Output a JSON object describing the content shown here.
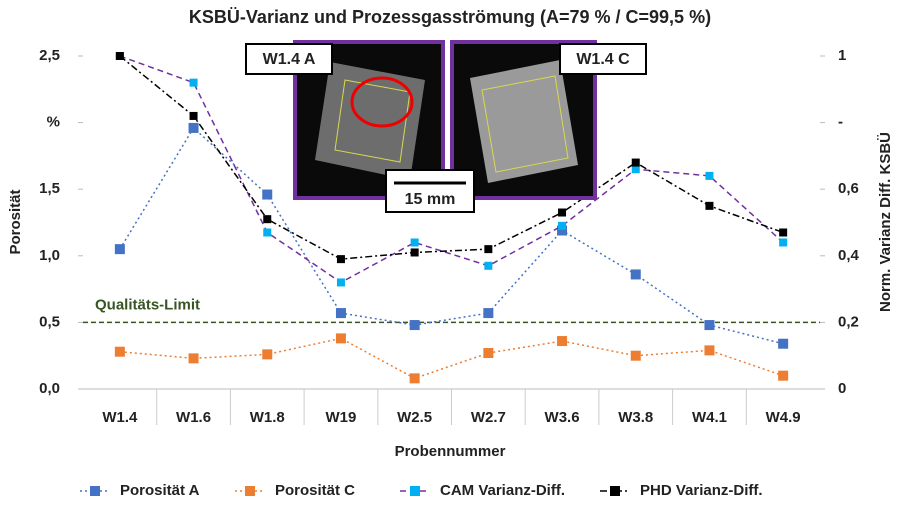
{
  "chart_data": {
    "type": "line",
    "title": "KSBÜ-Varianz und Prozessgasströmung (A=79 % / C=99,5 %)",
    "x_label": "Probennummer",
    "y_label": "Porosität",
    "y2_label": "Norm. Varianz Diff. KSBÜ",
    "categories": [
      "W1.4",
      "W1.6",
      "W1.8",
      "W19",
      "W2.5",
      "W2.7",
      "W3.6",
      "W3.8",
      "W4.1",
      "W4.9"
    ],
    "series": [
      {
        "name": "Porosität A",
        "color": "#4472c4",
        "line_color": "#4472c4",
        "dash": "dotted",
        "axis": "y",
        "values": [
          1.05,
          1.96,
          1.46,
          0.57,
          0.48,
          0.57,
          1.19,
          0.86,
          0.48,
          0.34
        ]
      },
      {
        "name": "Porosität C",
        "color": "#ed7d31",
        "line_color": "#ed7d31",
        "dash": "dotted",
        "axis": "y",
        "values": [
          0.28,
          0.23,
          0.26,
          0.38,
          0.08,
          0.27,
          0.36,
          0.25,
          0.29,
          0.1
        ]
      },
      {
        "name": "CAM Varianz-Diff.",
        "color": "#00b0f0",
        "line_color": "#7030a0",
        "dash": "dashed",
        "axis": "y2",
        "values": [
          1.0,
          0.92,
          0.47,
          0.32,
          0.44,
          0.37,
          0.49,
          0.66,
          0.64,
          0.44
        ]
      },
      {
        "name": "PHD Varianz-Diff.",
        "color": "#000000",
        "line_color": "#000000",
        "dash": "dashdot",
        "axis": "y2",
        "values": [
          1.0,
          0.82,
          0.51,
          0.39,
          0.41,
          0.42,
          0.53,
          0.68,
          0.55,
          0.47
        ]
      }
    ],
    "ylim": [
      0,
      2.5
    ],
    "yticks": [
      {
        "value": 0,
        "label": "0,0"
      },
      {
        "value": 0.5,
        "label": "0,5"
      },
      {
        "value": 1,
        "label": "1,0"
      },
      {
        "value": 1.5,
        "label": "1,5"
      },
      {
        "value": 2,
        "label": "%"
      },
      {
        "value": 2.5,
        "label": "2,5"
      }
    ],
    "y2lim": [
      0,
      1
    ],
    "y2ticks": [
      0,
      {
        "value": 0.2,
        "label": "0,2"
      },
      {
        "value": 0.4,
        "label": "0,4"
      },
      {
        "value": 0.6,
        "label": "0,6"
      },
      {
        "value": 0.8,
        "label": "-"
      },
      1
    ],
    "quality_limit": {
      "label": "Qualitäts-Limit",
      "value": 0.5,
      "color": "#375623"
    },
    "inset_labels": [
      "W1.4 A",
      "W1.4 C"
    ],
    "scale_label": "15 mm",
    "legend": "bottom"
  }
}
